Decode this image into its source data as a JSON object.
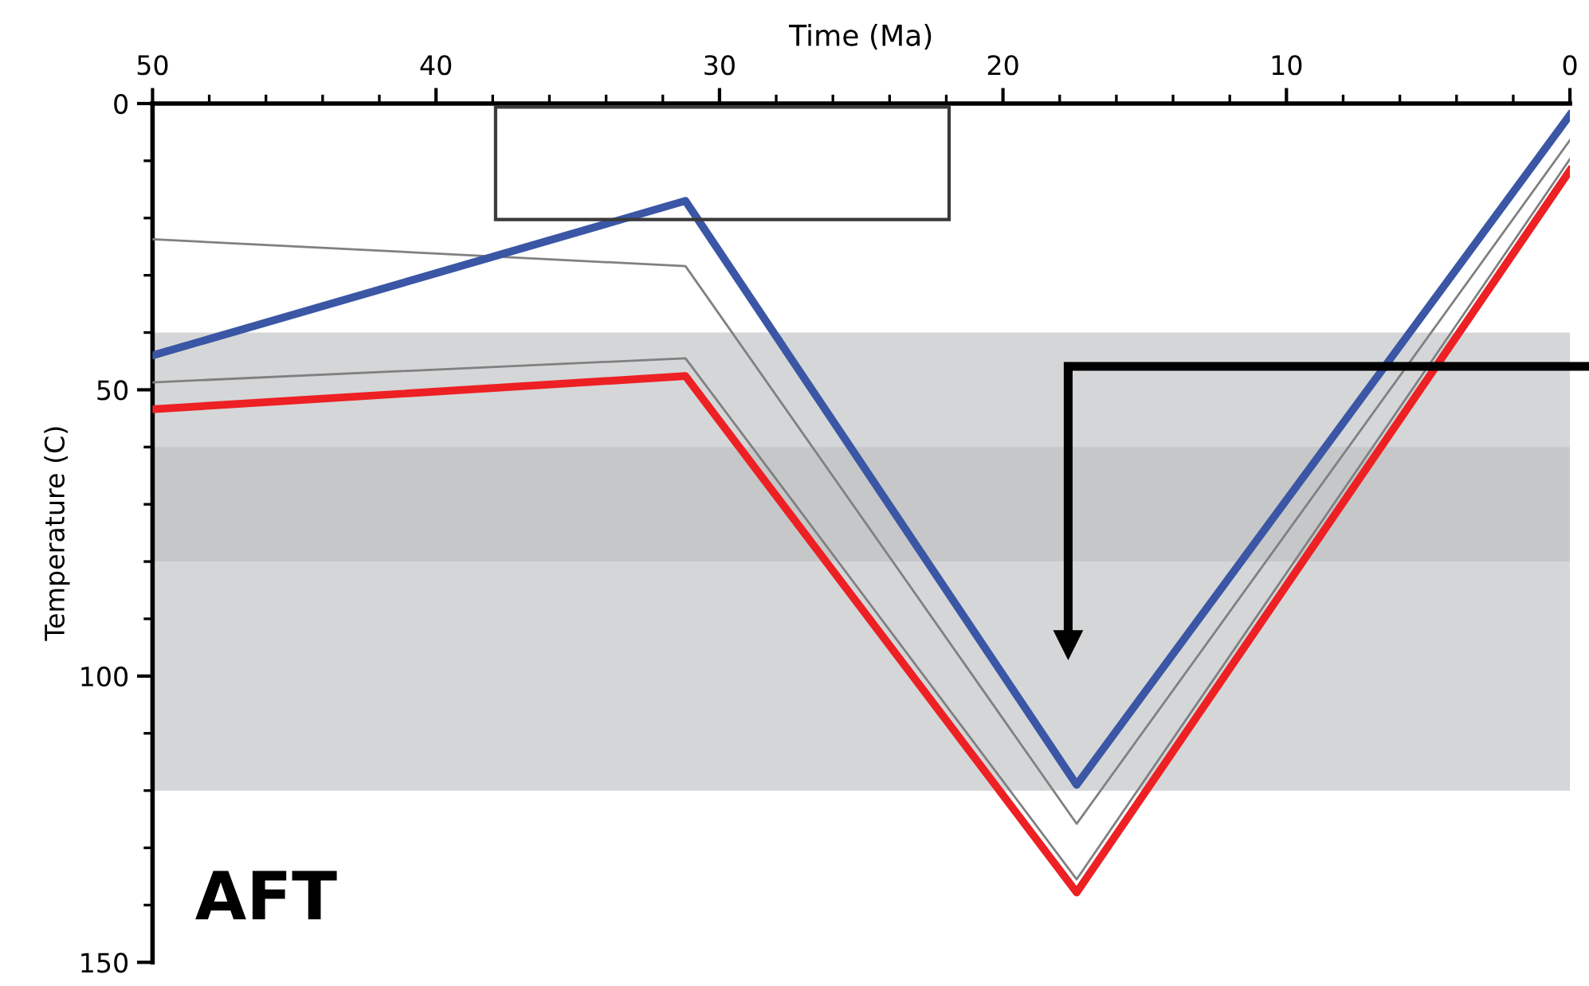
{
  "chart_data": {
    "type": "line",
    "xlabel": "Time (Ma)",
    "ylabel": "Temperature (C)",
    "xlim": [
      50,
      0
    ],
    "xticks": [
      50,
      40,
      30,
      20,
      10,
      0
    ],
    "ylim": [
      150,
      0
    ],
    "yticks": [
      0,
      50,
      100,
      150
    ],
    "grid": false,
    "legend": false,
    "marker": "none",
    "line_style": "solid",
    "bands": [
      {
        "axis": "y",
        "from": 40,
        "to": 120,
        "label": null,
        "color": "#d5d6d8"
      },
      {
        "axis": "y",
        "from": 60,
        "to": 80,
        "label": null,
        "color": "#c6c7c9"
      }
    ],
    "series": [
      {
        "color": "#808080",
        "x": [
          50,
          31.2,
          17.4,
          0
        ],
        "values": [
          23.7,
          28.4,
          125.8,
          6.4
        ]
      },
      {
        "color": "#808080",
        "x": [
          50,
          31.2,
          17.4,
          0
        ],
        "values": [
          48.7,
          44.5,
          135.5,
          9.7
        ]
      },
      {
        "color": "#3a56a5",
        "x": [
          50,
          31.2,
          17.4,
          0
        ],
        "values": [
          44,
          17,
          119,
          2
        ]
      },
      {
        "color": "#ed2024",
        "x": [
          50,
          31.2,
          17.4,
          0
        ],
        "values": [
          53.4,
          47.6,
          137.8,
          11.7
        ]
      }
    ],
    "annotations": [
      "AFT"
    ]
  }
}
